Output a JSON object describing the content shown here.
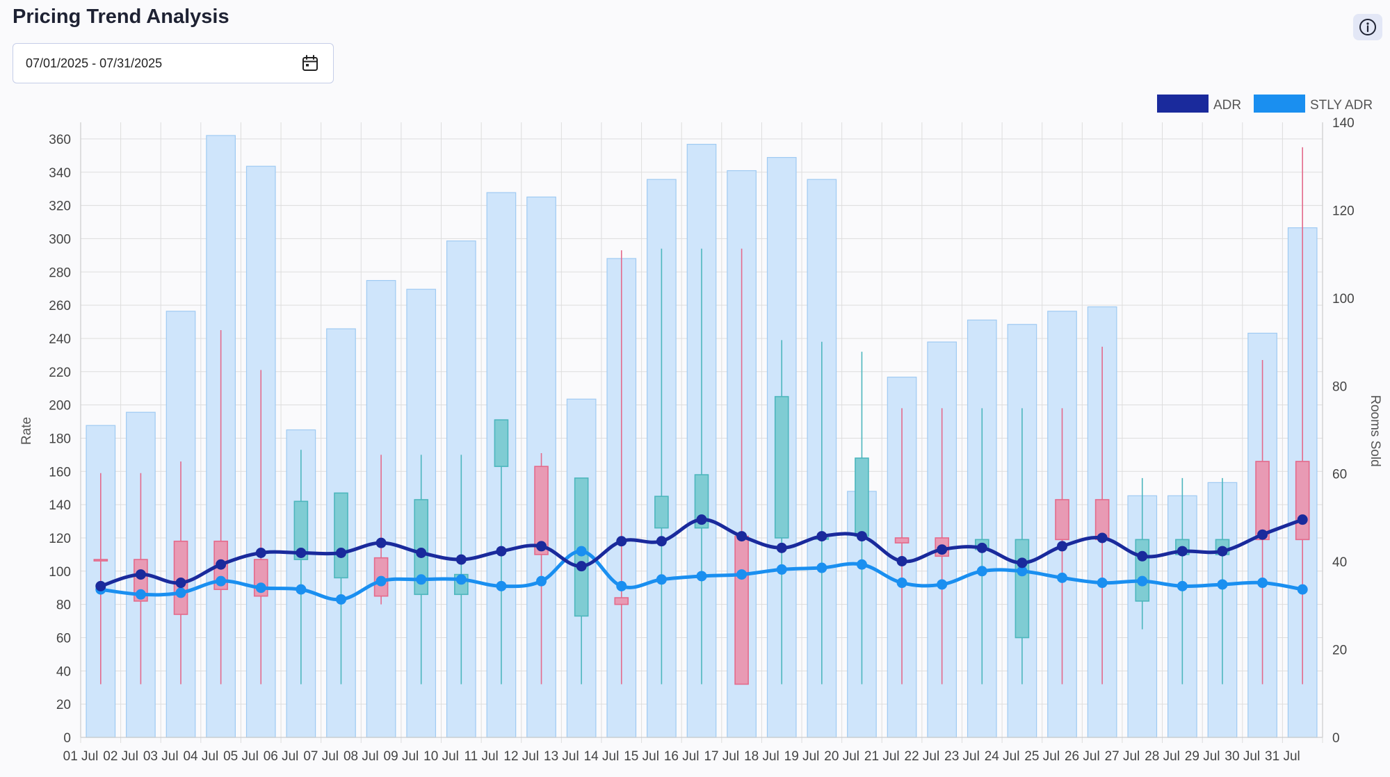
{
  "page": {
    "title": "Pricing Trend Analysis",
    "date_range": "07/01/2025 - 07/31/2025",
    "icons": {
      "calendar": "calendar-icon",
      "info": "info-icon"
    }
  },
  "colors": {
    "adr": "#1a2a9c",
    "stly_adr": "#1a8ff0",
    "rooms_bar_fill": "#cfe5fb",
    "rooms_bar_stroke": "#9fcaf2",
    "box_up_fill": "#7fccd3",
    "box_up_stroke": "#4db6bd",
    "box_down_fill": "#e89ab4",
    "box_down_stroke": "#e46a8b"
  },
  "chart_data": {
    "type": "bar",
    "categories": [
      "01 Jul",
      "02 Jul",
      "03 Jul",
      "04 Jul",
      "05 Jul",
      "06 Jul",
      "07 Jul",
      "08 Jul",
      "09 Jul",
      "10 Jul",
      "11 Jul",
      "12 Jul",
      "13 Jul",
      "14 Jul",
      "15 Jul",
      "16 Jul",
      "17 Jul",
      "18 Jul",
      "19 Jul",
      "20 Jul",
      "21 Jul",
      "22 Jul",
      "23 Jul",
      "24 Jul",
      "25 Jul",
      "26 Jul",
      "27 Jul",
      "28 Jul",
      "29 Jul",
      "30 Jul",
      "31 Jul"
    ],
    "ylabel": "Rate",
    "y2label": "Rooms Sold",
    "ylim": [
      0,
      370
    ],
    "y_ticks": [
      0,
      20,
      40,
      60,
      80,
      100,
      120,
      140,
      160,
      180,
      200,
      220,
      240,
      260,
      280,
      300,
      320,
      340,
      360
    ],
    "y2lim": [
      0,
      140
    ],
    "y2_ticks": [
      0,
      20,
      40,
      60,
      80,
      100,
      120,
      140
    ],
    "grid": true,
    "legend_position": "top-right",
    "rooms_sold": [
      71,
      74,
      97,
      137,
      130,
      70,
      93,
      104,
      102,
      113,
      124,
      123,
      77,
      109,
      127,
      135,
      129,
      132,
      127,
      56,
      82,
      90,
      95,
      94,
      97,
      98,
      55,
      55,
      58,
      92,
      116
    ],
    "boxes": [
      {
        "low": 32,
        "high": 159,
        "open": 107,
        "close": 107,
        "dir": "down"
      },
      {
        "low": 32,
        "high": 159,
        "open": 107,
        "close": 82,
        "dir": "down"
      },
      {
        "low": 32,
        "high": 166,
        "open": 118,
        "close": 74,
        "dir": "down"
      },
      {
        "low": 32,
        "high": 245,
        "open": 118,
        "close": 89,
        "dir": "down"
      },
      {
        "low": 32,
        "high": 221,
        "open": 107,
        "close": 85,
        "dir": "down"
      },
      {
        "low": 32,
        "high": 173,
        "open": 107,
        "close": 142,
        "dir": "up"
      },
      {
        "low": 32,
        "high": 147,
        "open": 96,
        "close": 147,
        "dir": "up"
      },
      {
        "low": 80,
        "high": 170,
        "open": 108,
        "close": 85,
        "dir": "down"
      },
      {
        "low": 32,
        "high": 170,
        "open": 86,
        "close": 143,
        "dir": "up"
      },
      {
        "low": 32,
        "high": 170,
        "open": 86,
        "close": 98,
        "dir": "up"
      },
      {
        "low": 32,
        "high": 191,
        "open": 163,
        "close": 191,
        "dir": "up"
      },
      {
        "low": 32,
        "high": 171,
        "open": 163,
        "close": 110,
        "dir": "down"
      },
      {
        "low": 32,
        "high": 156,
        "open": 73,
        "close": 156,
        "dir": "up"
      },
      {
        "low": 32,
        "high": 293,
        "open": 84,
        "close": 80,
        "dir": "down"
      },
      {
        "low": 32,
        "high": 294,
        "open": 126,
        "close": 145,
        "dir": "up"
      },
      {
        "low": 32,
        "high": 294,
        "open": 126,
        "close": 158,
        "dir": "up"
      },
      {
        "low": 32,
        "high": 294,
        "open": 121,
        "close": 32,
        "dir": "down"
      },
      {
        "low": 32,
        "high": 239,
        "open": 120,
        "close": 205,
        "dir": "up"
      },
      {
        "low": 32,
        "high": 238,
        "open": 120,
        "close": 120,
        "dir": "up"
      },
      {
        "low": 32,
        "high": 232,
        "open": 121,
        "close": 168,
        "dir": "up"
      },
      {
        "low": 32,
        "high": 198,
        "open": 120,
        "close": 117,
        "dir": "down"
      },
      {
        "low": 32,
        "high": 198,
        "open": 120,
        "close": 109,
        "dir": "down"
      },
      {
        "low": 32,
        "high": 198,
        "open": 113,
        "close": 119,
        "dir": "up"
      },
      {
        "low": 32,
        "high": 198,
        "open": 60,
        "close": 119,
        "dir": "up"
      },
      {
        "low": 32,
        "high": 198,
        "open": 143,
        "close": 119,
        "dir": "down"
      },
      {
        "low": 32,
        "high": 235,
        "open": 143,
        "close": 119,
        "dir": "down"
      },
      {
        "low": 65,
        "high": 156,
        "open": 82,
        "close": 119,
        "dir": "up"
      },
      {
        "low": 32,
        "high": 156,
        "open": 110,
        "close": 119,
        "dir": "up"
      },
      {
        "low": 32,
        "high": 156,
        "open": 110,
        "close": 119,
        "dir": "up"
      },
      {
        "low": 32,
        "high": 227,
        "open": 166,
        "close": 119,
        "dir": "down"
      },
      {
        "low": 32,
        "high": 355,
        "open": 166,
        "close": 119,
        "dir": "down"
      }
    ],
    "series": [
      {
        "name": "ADR",
        "values": [
          91,
          98,
          93,
          104,
          111,
          111,
          111,
          117,
          111,
          107,
          112,
          115,
          103,
          118,
          118,
          131,
          121,
          114,
          121,
          121,
          106,
          113,
          114,
          105,
          115,
          120,
          109,
          112,
          112,
          122,
          131
        ]
      },
      {
        "name": "STLY ADR",
        "values": [
          89,
          86,
          87,
          94,
          90,
          89,
          83,
          94,
          95,
          95,
          91,
          94,
          112,
          91,
          95,
          97,
          98,
          101,
          102,
          104,
          93,
          92,
          100,
          100,
          96,
          93,
          94,
          91,
          92,
          93,
          89
        ]
      }
    ]
  }
}
